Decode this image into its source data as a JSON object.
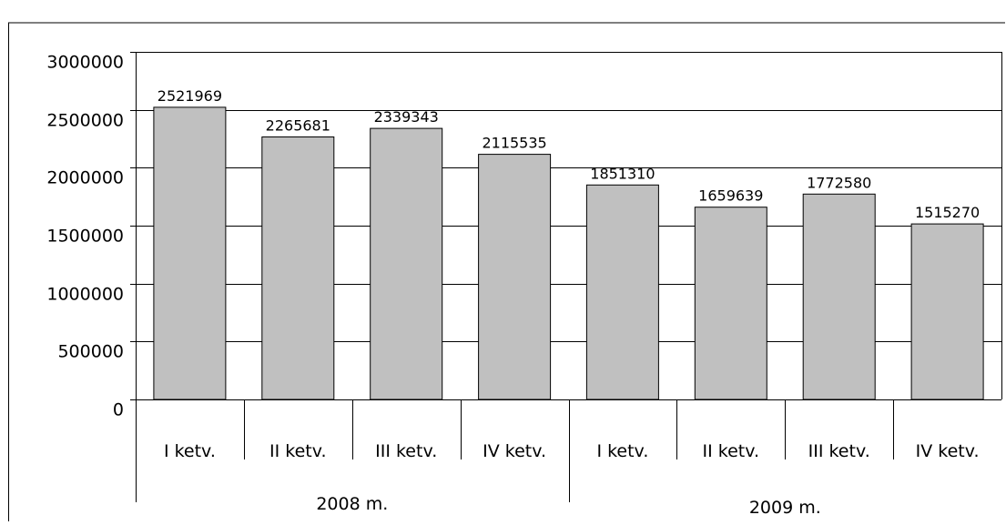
{
  "chart_data": {
    "type": "bar",
    "title": "",
    "xlabel": "",
    "ylabel": "",
    "ylim": [
      0,
      3000000
    ],
    "yticks": [
      0,
      500000,
      1000000,
      1500000,
      2000000,
      2500000,
      3000000
    ],
    "ytick_labels": [
      "0",
      "500000",
      "1000000",
      "1500000",
      "2000000",
      "2500000",
      "3000000"
    ],
    "grid": true,
    "legend": "none",
    "bar_color": "#c0c0c0",
    "categories": [
      "I ketv.",
      "II ketv.",
      "III ketv.",
      "IV ketv.",
      "I ketv.",
      "II ketv.",
      "III ketv.",
      "IV ketv."
    ],
    "groups": [
      {
        "label": "2008 m.",
        "span": 4
      },
      {
        "label": "2009 m.",
        "span": 4
      }
    ],
    "values": [
      2521969,
      2265681,
      2339343,
      2115535,
      1851310,
      1659639,
      1772580,
      1515270
    ],
    "data_labels": [
      "2521969",
      "2265681",
      "2339343",
      "2115535",
      "1851310",
      "1659639",
      "1772580",
      "1515270"
    ]
  }
}
